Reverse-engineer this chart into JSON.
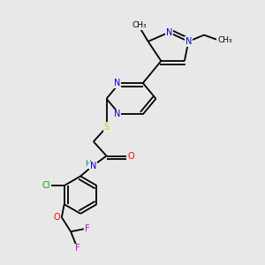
{
  "background_color": "#e8e8e8",
  "fig_width": 3.0,
  "fig_height": 3.0,
  "dpi": 100,
  "colors": {
    "N": "#0000cc",
    "S": "#cccc00",
    "O": "#ff0000",
    "Cl": "#00aa00",
    "F": "#cc00cc",
    "C": "#000000",
    "H": "#008080",
    "bond": "#000000"
  }
}
